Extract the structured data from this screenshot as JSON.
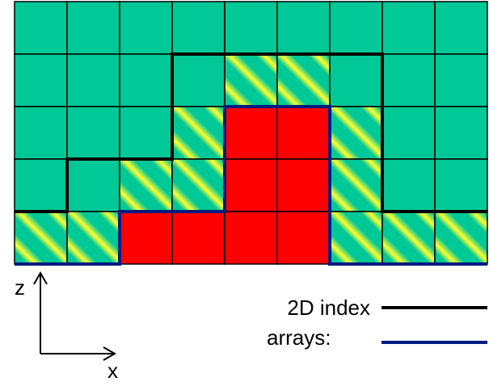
{
  "axes": {
    "vertical": "z",
    "horizontal": "x"
  },
  "legend": [
    {
      "label": "2D index"
    },
    {
      "label": "arrays:"
    }
  ]
}
